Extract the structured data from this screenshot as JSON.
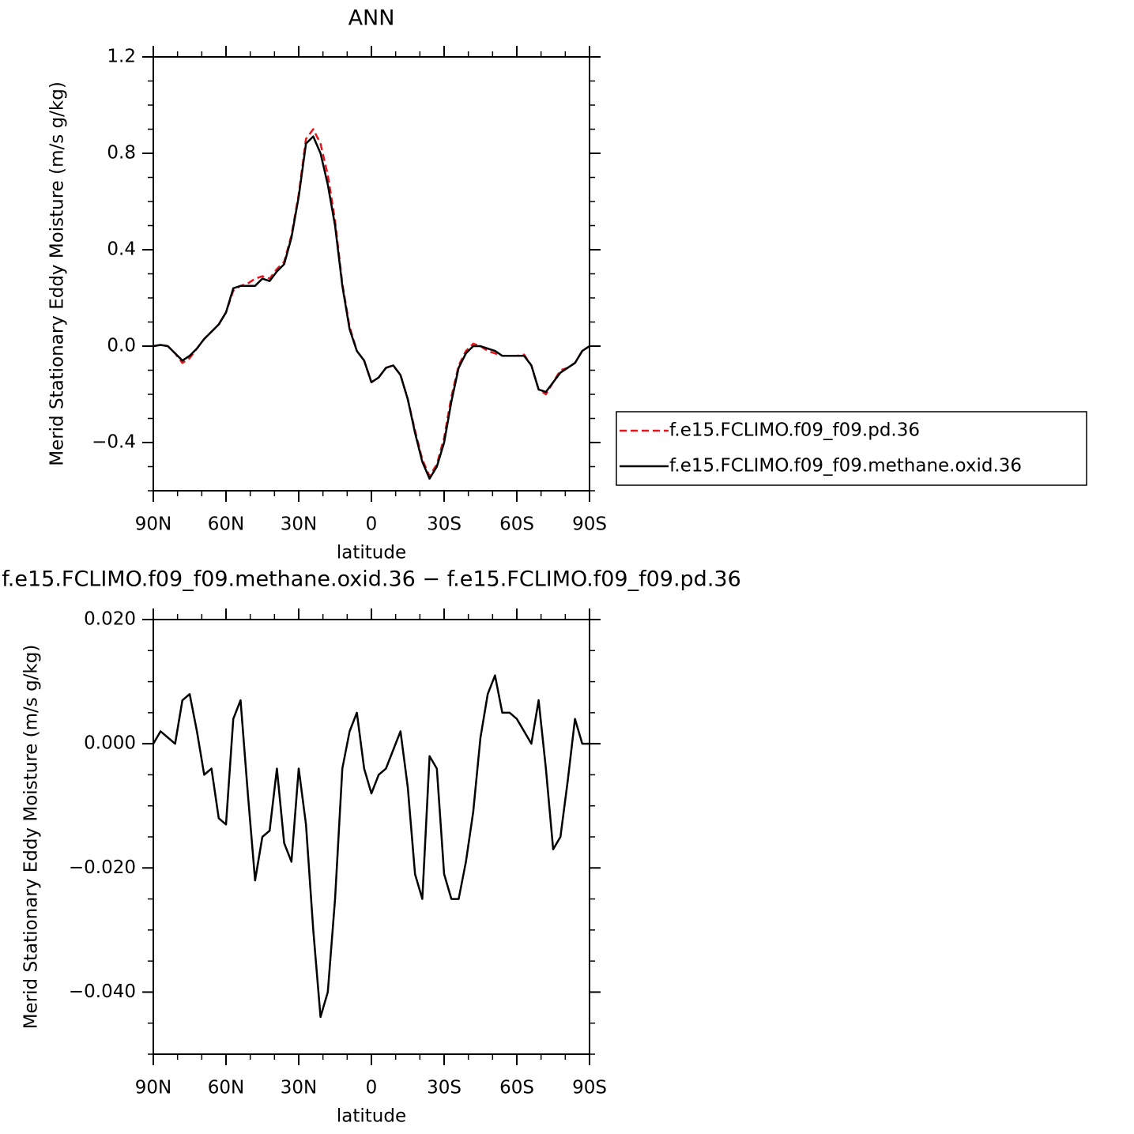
{
  "chart_data": [
    {
      "type": "line",
      "title": "ANN",
      "xlabel": "latitude",
      "ylabel": "Merid Stationary Eddy Moisture (m/s g/kg)",
      "x": [
        90,
        87,
        84,
        81,
        78,
        75,
        72,
        69,
        66,
        63,
        60,
        57,
        54,
        51,
        48,
        45,
        42,
        39,
        36,
        33,
        30,
        27,
        24,
        21,
        18,
        15,
        12,
        9,
        6,
        3,
        0,
        -3,
        -6,
        -9,
        -12,
        -15,
        -18,
        -21,
        -24,
        -27,
        -30,
        -33,
        -36,
        -39,
        -42,
        -45,
        -48,
        -51,
        -54,
        -57,
        -60,
        -63,
        -66,
        -69,
        -72,
        -75,
        -78,
        -81,
        -84,
        -87,
        -90
      ],
      "xlim": [
        90,
        -90
      ],
      "xticks": [
        {
          "value": 90,
          "label": "90N"
        },
        {
          "value": 60,
          "label": "60N"
        },
        {
          "value": 30,
          "label": "30N"
        },
        0,
        {
          "value": -30,
          "label": "30S"
        },
        {
          "value": -60,
          "label": "60S"
        },
        {
          "value": -90,
          "label": "90S"
        }
      ],
      "ylim": [
        -0.6,
        1.2
      ],
      "yticks": [
        {
          "value": -0.4,
          "label": "−0.4"
        },
        {
          "value": 0,
          "label": "0.0"
        },
        0.4,
        0.8,
        1.2
      ],
      "legend_position": "right",
      "series": [
        {
          "name": "f.e15.FCLIMO.f09_f09.pd.36",
          "color": "#e8141c",
          "line_style": "dashed",
          "values": [
            0.0,
            0.005,
            0.0,
            -0.03,
            -0.07,
            -0.05,
            -0.01,
            0.03,
            0.06,
            0.09,
            0.14,
            0.23,
            0.25,
            0.26,
            0.28,
            0.29,
            0.28,
            0.32,
            0.35,
            0.46,
            0.63,
            0.86,
            0.9,
            0.84,
            0.71,
            0.52,
            0.26,
            0.08,
            -0.02,
            -0.06,
            -0.15,
            -0.13,
            -0.09,
            -0.08,
            -0.12,
            -0.22,
            -0.35,
            -0.47,
            -0.54,
            -0.49,
            -0.38,
            -0.21,
            -0.08,
            -0.02,
            0.01,
            0.0,
            -0.02,
            -0.03,
            -0.04,
            -0.04,
            -0.04,
            -0.035,
            -0.08,
            -0.18,
            -0.2,
            -0.15,
            -0.1,
            -0.09,
            -0.07,
            -0.02,
            0.0
          ]
        },
        {
          "name": "f.e15.FCLIMO.f09_f09.methane.oxid.36",
          "color": "#000000",
          "line_style": "solid",
          "values": [
            0.0,
            0.005,
            0.0,
            -0.03,
            -0.06,
            -0.04,
            -0.01,
            0.03,
            0.06,
            0.09,
            0.14,
            0.24,
            0.25,
            0.25,
            0.25,
            0.28,
            0.27,
            0.31,
            0.34,
            0.45,
            0.62,
            0.84,
            0.87,
            0.8,
            0.67,
            0.5,
            0.25,
            0.07,
            -0.02,
            -0.06,
            -0.15,
            -0.13,
            -0.09,
            -0.08,
            -0.12,
            -0.22,
            -0.36,
            -0.48,
            -0.55,
            -0.5,
            -0.4,
            -0.23,
            -0.09,
            -0.03,
            0.0,
            0.0,
            -0.01,
            -0.02,
            -0.04,
            -0.04,
            -0.04,
            -0.04,
            -0.08,
            -0.18,
            -0.19,
            -0.15,
            -0.11,
            -0.09,
            -0.07,
            -0.02,
            0.0
          ]
        }
      ]
    },
    {
      "type": "line",
      "title": "f.e15.FCLIMO.f09_f09.methane.oxid.36 − f.e15.FCLIMO.f09_f09.pd.36",
      "xlabel": "latitude",
      "ylabel": "Merid Stationary Eddy Moisture (m/s g/kg)",
      "x": [
        90,
        87,
        84,
        81,
        78,
        75,
        72,
        69,
        66,
        63,
        60,
        57,
        54,
        51,
        48,
        45,
        42,
        39,
        36,
        33,
        30,
        27,
        24,
        21,
        18,
        15,
        12,
        9,
        6,
        3,
        0,
        -3,
        -6,
        -9,
        -12,
        -15,
        -18,
        -21,
        -24,
        -27,
        -30,
        -33,
        -36,
        -39,
        -42,
        -45,
        -48,
        -51,
        -54,
        -57,
        -60,
        -63,
        -66,
        -69,
        -72,
        -75,
        -78,
        -81,
        -84,
        -87,
        -90
      ],
      "xlim": [
        90,
        -90
      ],
      "xticks": [
        {
          "value": 90,
          "label": "90N"
        },
        {
          "value": 60,
          "label": "60N"
        },
        {
          "value": 30,
          "label": "30N"
        },
        0,
        {
          "value": -30,
          "label": "30S"
        },
        {
          "value": -60,
          "label": "60S"
        },
        {
          "value": -90,
          "label": "90S"
        }
      ],
      "ylim": [
        -0.05,
        0.02
      ],
      "yticks": [
        {
          "value": -0.04,
          "label": "−0.040"
        },
        {
          "value": -0.02,
          "label": "−0.020"
        },
        {
          "value": 0,
          "label": "0.000"
        },
        {
          "value": 0.02,
          "label": "0.020"
        }
      ],
      "series": [
        {
          "color": "#000000",
          "line_style": "solid",
          "values": [
            0.0,
            0.002,
            0.001,
            0.0,
            0.007,
            0.008,
            0.002,
            -0.005,
            -0.004,
            -0.012,
            -0.013,
            0.004,
            0.007,
            -0.008,
            -0.022,
            -0.015,
            -0.014,
            -0.004,
            -0.016,
            -0.019,
            -0.004,
            -0.013,
            -0.03,
            -0.044,
            -0.04,
            -0.025,
            -0.004,
            0.002,
            0.005,
            -0.004,
            -0.008,
            -0.005,
            -0.004,
            -0.001,
            0.002,
            -0.007,
            -0.021,
            -0.025,
            -0.002,
            -0.004,
            -0.021,
            -0.025,
            -0.025,
            -0.019,
            -0.011,
            0.001,
            0.008,
            0.011,
            0.005,
            0.005,
            0.004,
            0.002,
            0.0,
            0.007,
            -0.004,
            -0.017,
            -0.015,
            -0.006,
            0.004,
            0.0,
            0.0
          ]
        }
      ]
    }
  ]
}
